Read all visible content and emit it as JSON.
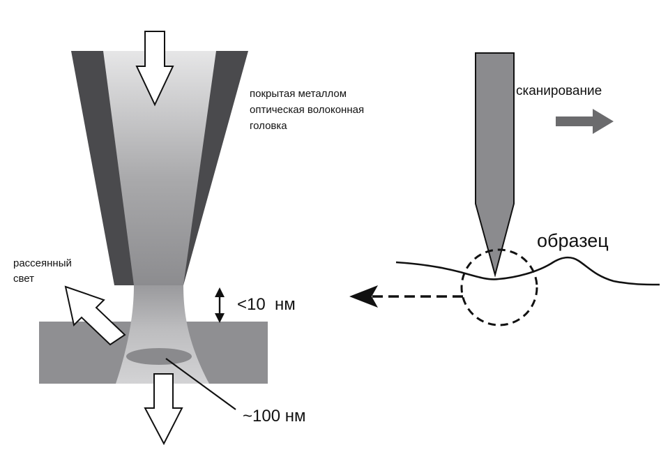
{
  "labels": {
    "fiber_head": [
      "покрытая металлом",
      "оптическая волоконная",
      "головка"
    ],
    "scattered_light": [
      "рассеянный",
      "свет"
    ],
    "gap": "<10  нм",
    "spot": "~100 нм",
    "scanning": "сканирование",
    "sample": "образец"
  },
  "colors": {
    "coating": "#4a4a4d",
    "fiber_core_top": "#d9d9da",
    "fiber_core_bottom": "#8e8e90",
    "sample_block": "#8f8f92",
    "tip": "#8b8b8e",
    "scan_arrow": "#6b6b6d",
    "line": "#111111"
  }
}
